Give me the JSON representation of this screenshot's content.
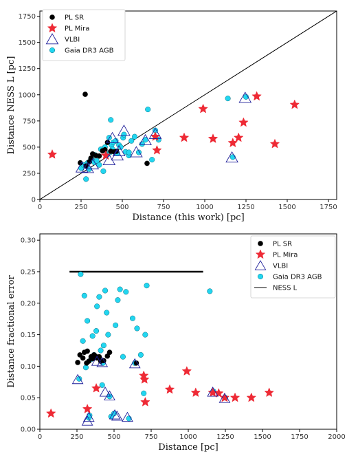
{
  "chart_data": [
    {
      "type": "scatter",
      "xlabel": "Distance (this work) [pc]",
      "ylabel": "Distance NESS L [pc]",
      "xlim": [
        0,
        1800
      ],
      "ylim": [
        0,
        1800
      ],
      "xticks": [
        0,
        250,
        500,
        750,
        1000,
        1250,
        1500,
        1750
      ],
      "yticks": [
        0,
        250,
        500,
        750,
        1000,
        1250,
        1500,
        1750
      ],
      "legend_position": "top-left",
      "reference_line": {
        "type": "one-to-one",
        "x": [
          0,
          1800
        ],
        "y": [
          0,
          1800
        ],
        "color": "#000000"
      },
      "series": [
        {
          "name": "PL SR",
          "marker": "circle",
          "color": "#000000",
          "points": [
            [
              275,
              1005
            ],
            [
              245,
              350
            ],
            [
              280,
              320
            ],
            [
              300,
              360
            ],
            [
              320,
              435
            ],
            [
              340,
              420
            ],
            [
              360,
              415
            ],
            [
              380,
              465
            ],
            [
              395,
              475
            ],
            [
              410,
              545
            ],
            [
              430,
              460
            ],
            [
              450,
              455
            ],
            [
              465,
              460
            ],
            [
              650,
              345
            ],
            [
              310,
              395
            ]
          ]
        },
        {
          "name": "PL Mira",
          "marker": "star",
          "color": "#ee2a35",
          "points": [
            [
              75,
              430
            ],
            [
              700,
              600
            ],
            [
              710,
              470
            ],
            [
              875,
              590
            ],
            [
              990,
              865
            ],
            [
              1050,
              580
            ],
            [
              1170,
              540
            ],
            [
              1205,
              590
            ],
            [
              1235,
              735
            ],
            [
              1315,
              985
            ],
            [
              1425,
              530
            ],
            [
              1545,
              905
            ],
            [
              400,
              420
            ]
          ]
        },
        {
          "name": "VLBI",
          "marker": "triangle",
          "color": "#1f1f9a",
          "points": [
            [
              255,
              300
            ],
            [
              290,
              295
            ],
            [
              320,
              330
            ],
            [
              420,
              370
            ],
            [
              440,
              580
            ],
            [
              470,
              415
            ],
            [
              510,
              650
            ],
            [
              585,
              445
            ],
            [
              640,
              560
            ],
            [
              700,
              620
            ],
            [
              1165,
              395
            ],
            [
              1245,
              965
            ],
            [
              480,
              455
            ]
          ]
        },
        {
          "name": "Gaia DR3 AGB",
          "marker": "circle",
          "color": "#22d6f0",
          "points": [
            [
              250,
              300
            ],
            [
              265,
              330
            ],
            [
              280,
              195
            ],
            [
              290,
              350
            ],
            [
              300,
              290
            ],
            [
              310,
              390
            ],
            [
              320,
              375
            ],
            [
              330,
              355
            ],
            [
              335,
              425
            ],
            [
              345,
              370
            ],
            [
              360,
              330
            ],
            [
              370,
              480
            ],
            [
              385,
              270
            ],
            [
              395,
              500
            ],
            [
              410,
              430
            ],
            [
              420,
              590
            ],
            [
              425,
              450
            ],
            [
              430,
              760
            ],
            [
              435,
              520
            ],
            [
              440,
              480
            ],
            [
              445,
              545
            ],
            [
              460,
              560
            ],
            [
              470,
              440
            ],
            [
              480,
              520
            ],
            [
              490,
              500
            ],
            [
              505,
              590
            ],
            [
              510,
              620
            ],
            [
              520,
              455
            ],
            [
              540,
              420
            ],
            [
              555,
              560
            ],
            [
              575,
              600
            ],
            [
              600,
              450
            ],
            [
              620,
              530
            ],
            [
              640,
              570
            ],
            [
              655,
              860
            ],
            [
              680,
              380
            ],
            [
              700,
              660
            ],
            [
              720,
              570
            ],
            [
              1140,
              965
            ],
            [
              1170,
              405
            ],
            [
              1250,
              980
            ],
            [
              540,
              450
            ]
          ]
        }
      ]
    },
    {
      "type": "scatter",
      "xlabel": "Distance [pc]",
      "ylabel": "Distance fractional error",
      "xlim": [
        0,
        2000
      ],
      "ylim": [
        0,
        0.31
      ],
      "xticks": [
        0,
        250,
        500,
        750,
        1000,
        1250,
        1500,
        1750,
        2000
      ],
      "yticks": [
        "0.00",
        "0.05",
        "0.10",
        "0.15",
        "0.20",
        "0.25",
        "0.30"
      ],
      "legend_position": "top-right",
      "series": [
        {
          "name": "PL SR",
          "marker": "circle",
          "color": "#000000",
          "points": [
            [
              255,
              0.106
            ],
            [
              270,
              0.118
            ],
            [
              290,
              0.113
            ],
            [
              300,
              0.122
            ],
            [
              315,
              0.105
            ],
            [
              320,
              0.124
            ],
            [
              330,
              0.108
            ],
            [
              345,
              0.115
            ],
            [
              355,
              0.112
            ],
            [
              365,
              0.118
            ],
            [
              375,
              0.116
            ],
            [
              385,
              0.113
            ],
            [
              400,
              0.115
            ],
            [
              410,
              0.108
            ],
            [
              430,
              0.109
            ],
            [
              455,
              0.116
            ],
            [
              470,
              0.122
            ],
            [
              650,
              0.105
            ]
          ]
        },
        {
          "name": "PL Mira",
          "marker": "star",
          "color": "#ee2a35",
          "points": [
            [
              75,
              0.025
            ],
            [
              320,
              0.032
            ],
            [
              380,
              0.065
            ],
            [
              700,
              0.085
            ],
            [
              705,
              0.079
            ],
            [
              710,
              0.043
            ],
            [
              875,
              0.063
            ],
            [
              990,
              0.092
            ],
            [
              1050,
              0.058
            ],
            [
              1165,
              0.058
            ],
            [
              1205,
              0.057
            ],
            [
              1245,
              0.05
            ],
            [
              1315,
              0.05
            ],
            [
              1425,
              0.05
            ],
            [
              1545,
              0.058
            ]
          ]
        },
        {
          "name": "VLBI",
          "marker": "triangle",
          "color": "#1f1f9a",
          "points": [
            [
              255,
              0.078
            ],
            [
              320,
              0.012
            ],
            [
              330,
              0.018
            ],
            [
              385,
              0.107
            ],
            [
              420,
              0.105
            ],
            [
              440,
              0.058
            ],
            [
              470,
              0.052
            ],
            [
              505,
              0.022
            ],
            [
              520,
              0.02
            ],
            [
              590,
              0.018
            ],
            [
              640,
              0.103
            ],
            [
              1165,
              0.058
            ],
            [
              1245,
              0.048
            ]
          ]
        },
        {
          "name": "Gaia DR3 AGB",
          "marker": "circle",
          "color": "#22d6f0",
          "points": [
            [
              265,
              0.08
            ],
            [
              275,
              0.246
            ],
            [
              290,
              0.14
            ],
            [
              300,
              0.212
            ],
            [
              310,
              0.098
            ],
            [
              320,
              0.172
            ],
            [
              330,
              0.018
            ],
            [
              335,
              0.022
            ],
            [
              345,
              0.111
            ],
            [
              355,
              0.148
            ],
            [
              365,
              0.118
            ],
            [
              380,
              0.156
            ],
            [
              385,
              0.195
            ],
            [
              400,
              0.21
            ],
            [
              410,
              0.125
            ],
            [
              420,
              0.07
            ],
            [
              425,
              0.105
            ],
            [
              430,
              0.133
            ],
            [
              440,
              0.22
            ],
            [
              450,
              0.185
            ],
            [
              460,
              0.15
            ],
            [
              470,
              0.052
            ],
            [
              480,
              0.02
            ],
            [
              500,
              0.025
            ],
            [
              510,
              0.165
            ],
            [
              525,
              0.205
            ],
            [
              540,
              0.222
            ],
            [
              560,
              0.115
            ],
            [
              580,
              0.218
            ],
            [
              600,
              0.017
            ],
            [
              625,
              0.176
            ],
            [
              640,
              0.105
            ],
            [
              655,
              0.16
            ],
            [
              680,
              0.118
            ],
            [
              700,
              0.057
            ],
            [
              710,
              0.15
            ],
            [
              720,
              0.228
            ],
            [
              1145,
              0.219
            ],
            [
              1170,
              0.06
            ],
            [
              1250,
              0.05
            ]
          ]
        },
        {
          "name": "NESS L",
          "marker": "line",
          "color": "#000000",
          "points": [
            [
              200,
              0.25
            ],
            [
              1100,
              0.25
            ]
          ]
        }
      ]
    }
  ]
}
